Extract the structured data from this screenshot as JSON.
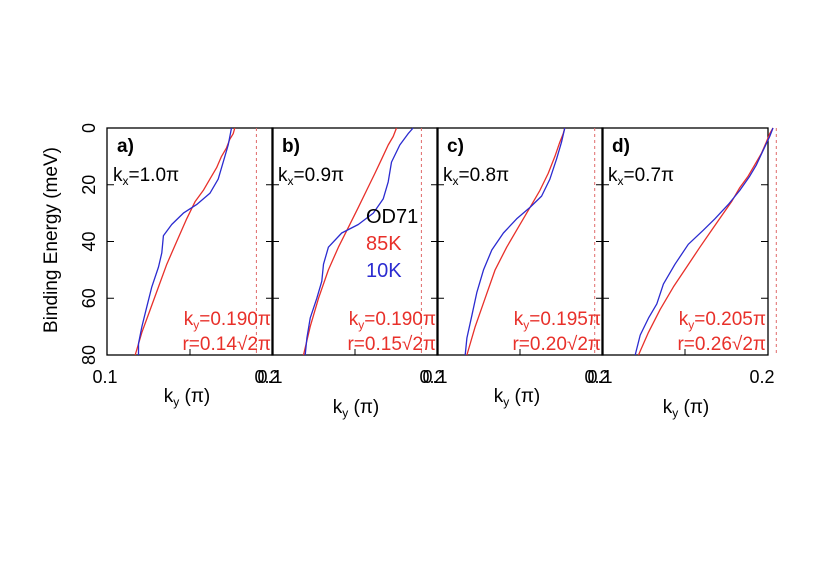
{
  "figure": {
    "ylabel": "Binding Energy (meV)",
    "legend": {
      "sample": "OD71",
      "warm": "85K",
      "cold": "10K"
    },
    "colors": {
      "warm": "#e8302a",
      "cold": "#2b2bd0",
      "axis": "#000000",
      "marker": "#e06a6a"
    }
  },
  "chart_data": [
    {
      "type": "line",
      "panel_label": "a)",
      "kx_label": "k",
      "kx_sub": "x",
      "kx_value": "=1.0π",
      "ky_label": "k",
      "ky_sub": "y",
      "ky_value": "=0.190π",
      "r_label": "r=0.14√2π",
      "xlabel": "k",
      "xlabel_sub": "y",
      "xlabel_unit": " (π)",
      "xlim": [
        0.1,
        0.2
      ],
      "xticks": [
        "0.1",
        "0.2"
      ],
      "ylim": [
        80,
        0
      ],
      "yticks": [
        "0",
        "20",
        "40",
        "60",
        "80"
      ],
      "ky_marker": 0.19,
      "series": [
        {
          "name": "85K",
          "x": [
            0.117,
            0.121,
            0.126,
            0.131,
            0.136,
            0.142,
            0.148,
            0.153,
            0.158,
            0.162,
            0.166,
            0.169,
            0.172,
            0.174,
            0.176,
            0.177
          ],
          "y": [
            80,
            72,
            64,
            56,
            48,
            40,
            32,
            26,
            22,
            18,
            14,
            10,
            7,
            4,
            2,
            0
          ]
        },
        {
          "name": "10K",
          "x": [
            0.119,
            0.119,
            0.121,
            0.124,
            0.127,
            0.131,
            0.133,
            0.134,
            0.139,
            0.146,
            0.154,
            0.162,
            0.167,
            0.17,
            0.173,
            0.175
          ],
          "y": [
            80,
            76,
            70,
            63,
            56,
            49,
            44,
            38,
            34,
            30,
            27,
            23,
            18,
            12,
            6,
            0
          ]
        }
      ]
    },
    {
      "type": "line",
      "panel_label": "b)",
      "kx_label": "k",
      "kx_sub": "x",
      "kx_value": "=0.9π",
      "ky_label": "k",
      "ky_sub": "y",
      "ky_value": "=0.190π",
      "r_label": "r=0.15√2π",
      "xlabel": "k",
      "xlabel_sub": "y",
      "xlabel_unit": " (π)",
      "xlim": [
        0.1,
        0.2
      ],
      "xticks": [
        "0.1",
        "0.2"
      ],
      "ylim": [
        80,
        0
      ],
      "yticks": [],
      "ky_marker": 0.19,
      "series": [
        {
          "name": "85K",
          "x": [
            0.119,
            0.123,
            0.128,
            0.134,
            0.14,
            0.146,
            0.152,
            0.157,
            0.162,
            0.166,
            0.17,
            0.173,
            0.175
          ],
          "y": [
            80,
            70,
            60,
            50,
            42,
            35,
            28,
            22,
            16,
            11,
            6,
            3,
            0
          ]
        },
        {
          "name": "10K",
          "x": [
            0.12,
            0.121,
            0.123,
            0.127,
            0.13,
            0.131,
            0.134,
            0.142,
            0.152,
            0.161,
            0.167,
            0.17,
            0.172,
            0.177,
            0.182,
            0.185
          ],
          "y": [
            80,
            74,
            67,
            60,
            54,
            48,
            42,
            37,
            34,
            30,
            25,
            19,
            12,
            6,
            2,
            0
          ]
        }
      ]
    },
    {
      "type": "line",
      "panel_label": "c)",
      "kx_label": "k",
      "kx_sub": "x",
      "kx_value": "=0.8π",
      "ky_label": "k",
      "ky_sub": "y",
      "ky_value": "=0.195π",
      "r_label": "r=0.20√2π",
      "xlabel": "k",
      "xlabel_sub": "y",
      "xlabel_unit": " (π)",
      "xlim": [
        0.1,
        0.2
      ],
      "xticks": [
        "0.1",
        "0.2"
      ],
      "ylim": [
        80,
        0
      ],
      "yticks": [],
      "ky_marker": 0.195,
      "series": [
        {
          "name": "85K",
          "x": [
            0.118,
            0.123,
            0.129,
            0.135,
            0.142,
            0.149,
            0.156,
            0.162,
            0.167,
            0.171,
            0.174,
            0.176,
            0.177
          ],
          "y": [
            80,
            70,
            60,
            50,
            42,
            35,
            28,
            22,
            16,
            10,
            5,
            2,
            0
          ]
        },
        {
          "name": "10K",
          "x": [
            0.117,
            0.118,
            0.121,
            0.124,
            0.128,
            0.133,
            0.14,
            0.148,
            0.156,
            0.163,
            0.168,
            0.172,
            0.175,
            0.177
          ],
          "y": [
            80,
            74,
            66,
            58,
            50,
            43,
            37,
            32,
            28,
            24,
            18,
            11,
            5,
            0
          ]
        }
      ]
    },
    {
      "type": "line",
      "panel_label": "d)",
      "kx_label": "k",
      "kx_sub": "x",
      "kx_value": "=0.7π",
      "ky_label": "k",
      "ky_sub": "y",
      "ky_value": "=0.205π",
      "r_label": "r=0.26√2π",
      "xlabel": "k",
      "xlabel_sub": "y",
      "xlabel_unit": " (π)",
      "xlim": [
        0.1,
        0.2
      ],
      "xticks": [
        "0.1",
        "0.2"
      ],
      "ylim": [
        80,
        0
      ],
      "yticks": [],
      "ky_marker": 0.205,
      "series": [
        {
          "name": "85K",
          "x": [
            0.122,
            0.128,
            0.135,
            0.143,
            0.151,
            0.159,
            0.166,
            0.172,
            0.178,
            0.183,
            0.188,
            0.192,
            0.196,
            0.199,
            0.201,
            0.203
          ],
          "y": [
            80,
            72,
            64,
            56,
            49,
            42,
            36,
            31,
            26,
            21,
            17,
            13,
            9,
            5,
            2,
            0
          ]
        },
        {
          "name": "10K",
          "x": [
            0.12,
            0.123,
            0.128,
            0.133,
            0.137,
            0.144,
            0.152,
            0.161,
            0.168,
            0.176,
            0.183,
            0.189,
            0.193,
            0.197,
            0.201,
            0.203
          ],
          "y": [
            80,
            73,
            67,
            62,
            55,
            48,
            41,
            36,
            32,
            27,
            22,
            17,
            13,
            8,
            3,
            0
          ]
        }
      ]
    }
  ]
}
